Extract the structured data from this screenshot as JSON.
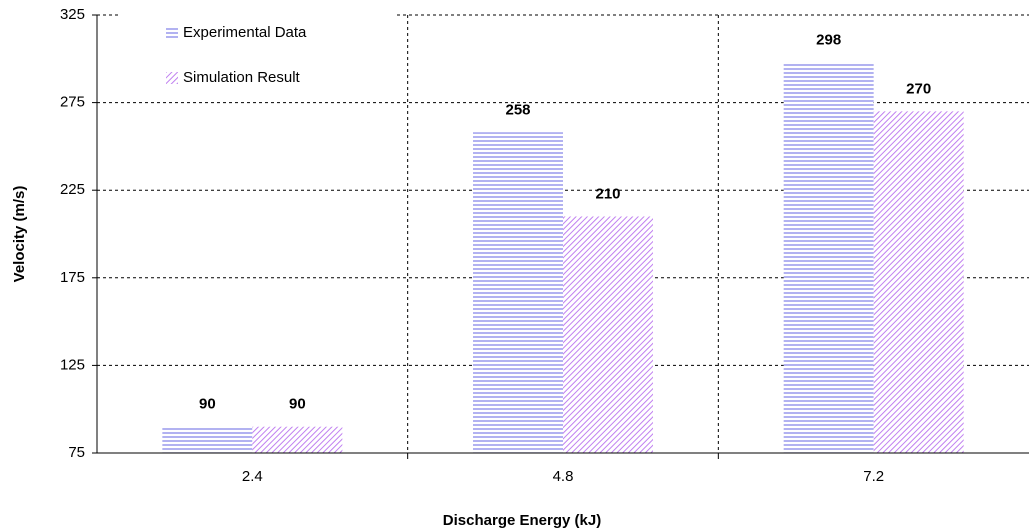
{
  "chart_data": {
    "type": "bar",
    "x_label": "Discharge Energy (kJ)",
    "y_label": "Velocity (m/s)",
    "categories": [
      "2.4",
      "4.8",
      "7.2"
    ],
    "series": [
      {
        "name": "Experimental Data",
        "color": "#8080e8",
        "pattern": "horizontal",
        "values": [
          90,
          258,
          298
        ]
      },
      {
        "name": "Simulation Result",
        "color": "#c080f0",
        "pattern": "diagonal",
        "values": [
          90,
          210,
          270
        ]
      }
    ],
    "ylim": [
      75,
      325
    ],
    "yticks": [
      75,
      125,
      175,
      225,
      275,
      325
    ],
    "grid": true,
    "legend": "upper left"
  }
}
